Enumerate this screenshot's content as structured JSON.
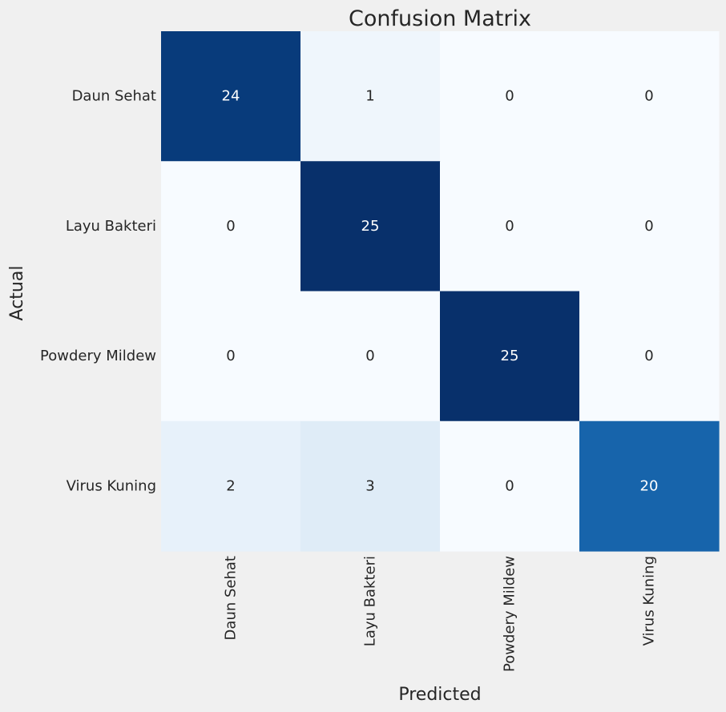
{
  "chart_data": {
    "type": "heatmap",
    "title": "Confusion Matrix",
    "xlabel": "Predicted",
    "ylabel": "Actual",
    "x_categories": [
      "Daun Sehat",
      "Layu Bakteri",
      "Powdery Mildew",
      "Virus Kuning"
    ],
    "y_categories": [
      "Daun Sehat",
      "Layu Bakteri",
      "Powdery Mildew",
      "Virus Kuning"
    ],
    "values": [
      [
        24,
        1,
        0,
        0
      ],
      [
        0,
        25,
        0,
        0
      ],
      [
        0,
        0,
        25,
        0
      ],
      [
        2,
        3,
        0,
        20
      ]
    ],
    "vmin": 0,
    "vmax": 25,
    "colormap": "Blues",
    "annotate": true,
    "colorbar": false,
    "grid": false
  },
  "colors": {
    "background": "#f0f0f0",
    "low": "#f7fbff",
    "high": "#08306b",
    "text_dark": "#262626",
    "text_light": "#ffffff"
  }
}
